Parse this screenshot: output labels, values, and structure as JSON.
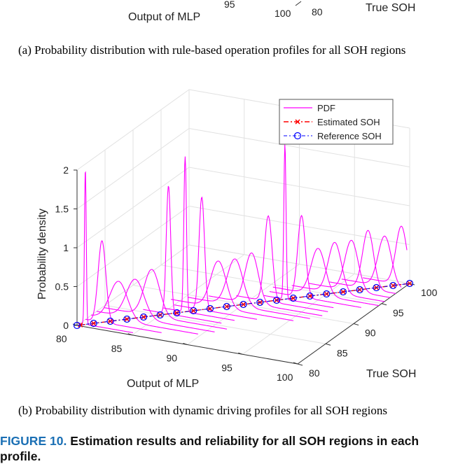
{
  "top_fragment": {
    "tick_95": "95",
    "tick_100": "100",
    "tick_80": "80",
    "xlabel": "Output of MLP",
    "ylabel": "True SOH"
  },
  "caption_a": "(a)  Probability distribution with rule-based operation profiles for all SOH regions",
  "caption_b": "(b)  Probability distribution with dynamic driving profiles for all SOH regions",
  "figure": {
    "label": "FIGURE 10.",
    "title": "Estimation results and reliability for all SOH regions in each profile."
  },
  "chart_data": {
    "type": "line3d",
    "xlabel": "Output of MLP",
    "ylabel": "True SOH",
    "zlabel": "Probability density",
    "x_ticks": [
      "80",
      "85",
      "90",
      "95",
      "100"
    ],
    "y_ticks": [
      "80",
      "85",
      "90",
      "95",
      "100"
    ],
    "z_ticks": [
      "0",
      "0.5",
      "1",
      "1.5",
      "2"
    ],
    "xlim": [
      80,
      100
    ],
    "ylim": [
      80,
      100
    ],
    "zlim": [
      0,
      2
    ],
    "legend": {
      "placement": "top-right",
      "entries": [
        {
          "label": "PDF",
          "color": "#ff00ff",
          "style": "solid"
        },
        {
          "label": "Estimated SOH",
          "color": "#ff0000",
          "style": "dash-dot",
          "marker": "x"
        },
        {
          "label": "Reference SOH",
          "color": "#0000ff",
          "style": "dash-dot",
          "marker": "o"
        }
      ]
    },
    "series": [
      {
        "name": "PDF",
        "true_soh": [
          80.5,
          81.5,
          82.5,
          83.5,
          84.5,
          85.5,
          86.5,
          87.5,
          88.5,
          89.5,
          90.5,
          91.5,
          92.5,
          93.5,
          94.5,
          95.5,
          96.5,
          97.5,
          98.5,
          99.5
        ],
        "peak_density": [
          2.0,
          1.05,
          0.5,
          0.5,
          0.6,
          1.65,
          2.0,
          1.45,
          0.6,
          0.6,
          0.65,
          1.1,
          2.0,
          1.05,
          0.6,
          0.65,
          0.65,
          0.75,
          0.65,
          0.75
        ],
        "sigma": [
          0.08,
          0.35,
          0.8,
          0.8,
          0.7,
          0.2,
          0.12,
          0.25,
          0.7,
          0.7,
          0.6,
          0.35,
          0.1,
          0.35,
          0.65,
          0.6,
          0.6,
          0.5,
          0.6,
          0.5
        ]
      },
      {
        "name": "Estimated SOH",
        "x": [
          80.2,
          81.0,
          82.0,
          83.0,
          84.0,
          85.0,
          86.0,
          87.0,
          88.0,
          89.0,
          90.0,
          91.0,
          92.0,
          93.0,
          94.0,
          95.0,
          96.0,
          97.0,
          98.0,
          99.0,
          100.0
        ],
        "y": [
          80.2,
          81.0,
          82.0,
          83.0,
          84.0,
          85.0,
          86.0,
          87.0,
          88.0,
          89.0,
          90.0,
          91.0,
          92.0,
          93.0,
          94.0,
          95.0,
          96.0,
          97.0,
          98.0,
          99.0,
          100.0
        ],
        "z": 0
      },
      {
        "name": "Reference SOH",
        "x": [
          80.0,
          81.0,
          82.0,
          83.0,
          84.0,
          85.0,
          86.0,
          87.0,
          88.0,
          89.0,
          90.0,
          91.0,
          92.0,
          93.0,
          94.0,
          95.0,
          96.0,
          97.0,
          98.0,
          99.0,
          100.0
        ],
        "y": [
          80.0,
          81.0,
          82.0,
          83.0,
          84.0,
          85.0,
          86.0,
          87.0,
          88.0,
          89.0,
          90.0,
          91.0,
          92.0,
          93.0,
          94.0,
          95.0,
          96.0,
          97.0,
          98.0,
          99.0,
          100.0
        ],
        "z": 0
      }
    ]
  }
}
